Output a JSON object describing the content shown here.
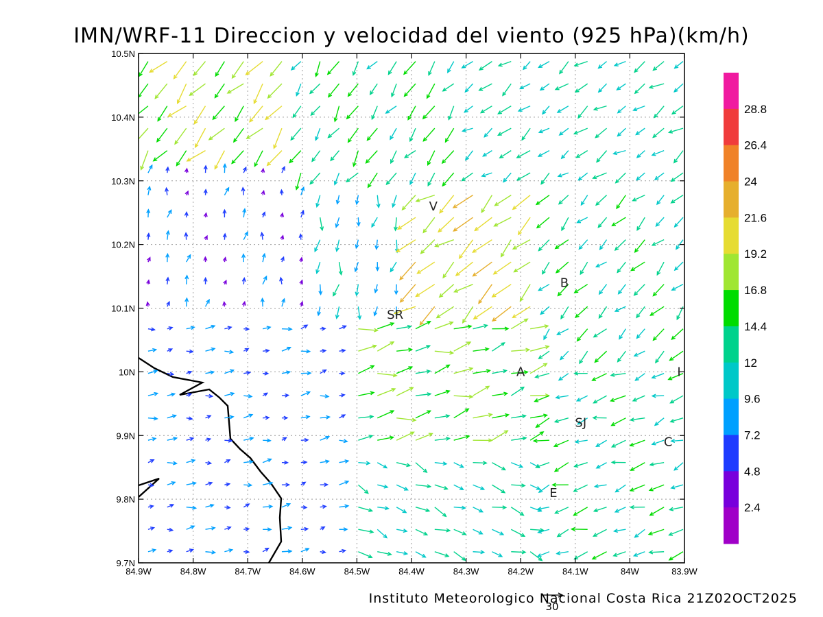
{
  "title": "IMN/WRF-11 Direccion y velocidad del viento (925 hPa)(km/h)",
  "credit": "Instituto Meteorologico Nacional Costa Rica 21Z02OCT2025",
  "reference_vector": {
    "value": 30,
    "label": "30"
  },
  "map": {
    "lon_range": [
      -84.9,
      -83.9
    ],
    "lat_range": [
      9.7,
      10.5
    ],
    "grid": true,
    "x_ticks": [
      "84.9W",
      "84.8W",
      "84.7W",
      "84.6W",
      "84.5W",
      "84.4W",
      "84.3W",
      "84.2W",
      "84.1W",
      "84W",
      "83.9W"
    ],
    "y_ticks": [
      "9.7N",
      "9.8N",
      "9.9N",
      "10N",
      "10.1N",
      "10.2N",
      "10.3N",
      "10.4N",
      "10.5N"
    ],
    "cities": [
      {
        "label": "V",
        "lon": -84.36,
        "lat": 10.26
      },
      {
        "label": "SR",
        "lon": -84.43,
        "lat": 10.09
      },
      {
        "label": "B",
        "lon": -84.12,
        "lat": 10.14
      },
      {
        "label": "A",
        "lon": -84.2,
        "lat": 10.0
      },
      {
        "label": "I",
        "lon": -83.91,
        "lat": 10.0
      },
      {
        "label": "SJ",
        "lon": -84.09,
        "lat": 9.92
      },
      {
        "label": "C",
        "lon": -83.93,
        "lat": 9.89
      },
      {
        "label": "E",
        "lon": -84.14,
        "lat": 9.81
      }
    ]
  },
  "colorbar": {
    "labels": [
      "28.8",
      "26.4",
      "24",
      "21.6",
      "19.2",
      "16.8",
      "14.4",
      "12",
      "9.6",
      "7.2",
      "4.8",
      "2.4"
    ],
    "colors": [
      "#f01aa0",
      "#f03c3c",
      "#f08228",
      "#e6af2d",
      "#e6dc32",
      "#a0e632",
      "#00dc00",
      "#00d28c",
      "#00c8c8",
      "#00a0ff",
      "#1e3cff",
      "#7800dc",
      "#a000c8"
    ]
  },
  "chart_data": {
    "type": "vector-field",
    "title": "IMN/WRF-11 Direccion y velocidad del viento (925 hPa)(km/h)",
    "units": "km/h",
    "level": "925 hPa",
    "valid_time": "21Z02OCT2025",
    "x_range": [
      -84.9,
      -83.9
    ],
    "y_range": [
      9.7,
      10.5
    ],
    "grid_spacing_deg": 0.035,
    "regions": [
      {
        "lon_min": -84.9,
        "lon_max": -84.62,
        "lat_min": 10.33,
        "lat_max": 10.5,
        "dir_deg": 220,
        "speed": 18
      },
      {
        "lon_min": -84.62,
        "lon_max": -84.3,
        "lat_min": 10.3,
        "lat_max": 10.5,
        "dir_deg": 215,
        "speed": 14
      },
      {
        "lon_min": -84.3,
        "lon_max": -83.9,
        "lat_min": 10.3,
        "lat_max": 10.5,
        "dir_deg": 235,
        "speed": 12
      },
      {
        "lon_min": -84.9,
        "lon_max": -84.6,
        "lat_min": 10.1,
        "lat_max": 10.33,
        "dir_deg": 10,
        "speed": 6
      },
      {
        "lon_min": -84.6,
        "lon_max": -84.4,
        "lat_min": 10.12,
        "lat_max": 10.3,
        "dir_deg": 190,
        "speed": 10
      },
      {
        "lon_min": -84.4,
        "lon_max": -84.15,
        "lat_min": 10.1,
        "lat_max": 10.3,
        "dir_deg": 230,
        "speed": 20
      },
      {
        "lon_min": -84.15,
        "lon_max": -83.9,
        "lat_min": 10.0,
        "lat_max": 10.3,
        "dir_deg": 225,
        "speed": 13
      },
      {
        "lon_min": -84.9,
        "lon_max": -84.5,
        "lat_min": 9.7,
        "lat_max": 10.1,
        "dir_deg": 80,
        "speed": 7
      },
      {
        "lon_min": -84.5,
        "lon_max": -84.15,
        "lat_min": 9.88,
        "lat_max": 10.1,
        "dir_deg": 75,
        "speed": 16
      },
      {
        "lon_min": -84.5,
        "lon_max": -84.15,
        "lat_min": 9.7,
        "lat_max": 9.88,
        "dir_deg": 110,
        "speed": 12
      },
      {
        "lon_min": -84.15,
        "lon_max": -83.9,
        "lat_min": 9.7,
        "lat_max": 10.0,
        "dir_deg": 250,
        "speed": 13
      }
    ],
    "xlabel": "",
    "ylabel": ""
  }
}
